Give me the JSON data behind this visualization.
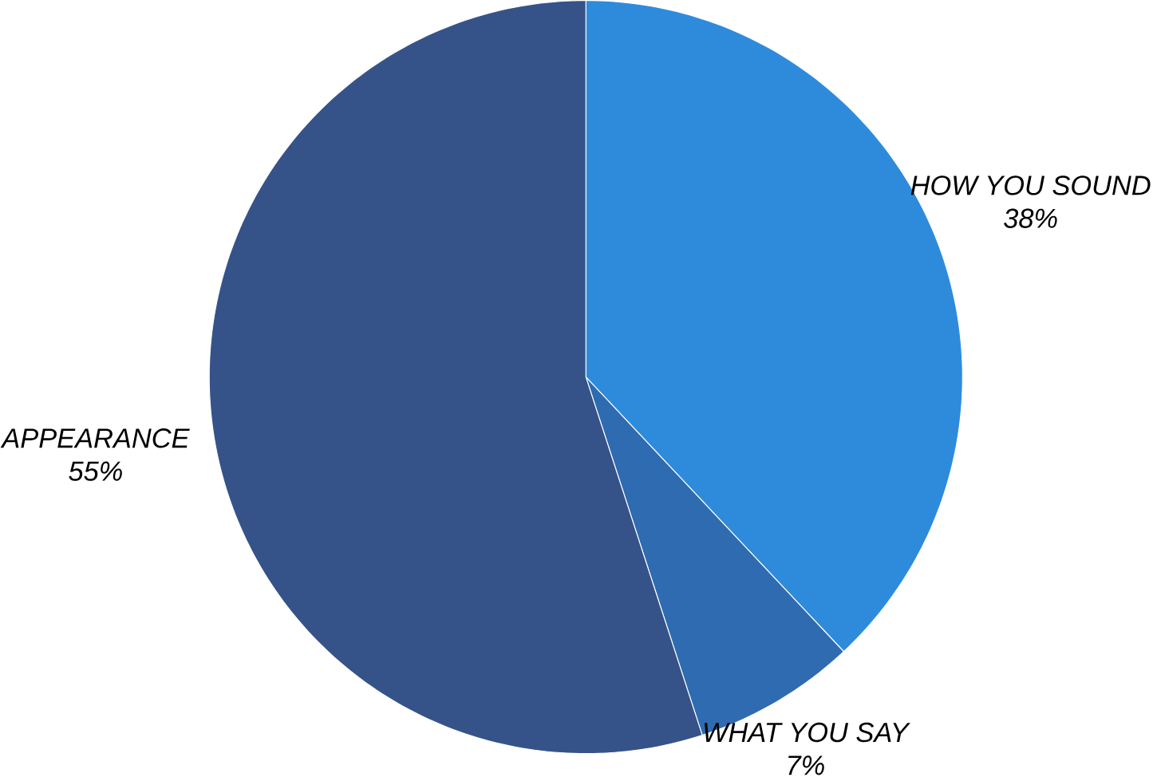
{
  "chart_data": {
    "type": "pie",
    "categories": [
      "HOW YOU SOUND",
      "WHAT YOU SAY",
      "APPEARANCE"
    ],
    "values": [
      38,
      7,
      55
    ],
    "colors": [
      "#2e8bdc",
      "#2f6bb0",
      "#355389"
    ],
    "value_labels": [
      "38%",
      "7%",
      "55%"
    ]
  }
}
